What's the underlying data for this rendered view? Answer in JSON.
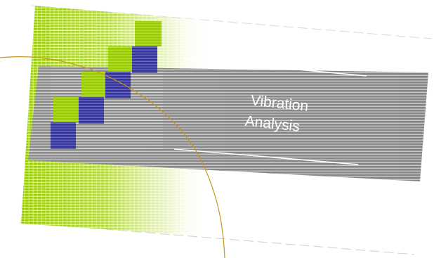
{
  "title": {
    "line1": "Vibration",
    "line2": "Analysis"
  },
  "colors": {
    "green": "#99cc00",
    "blue": "#333399",
    "gray": "#8c8c8c",
    "gold": "#c8981e",
    "white": "#ffffff"
  }
}
